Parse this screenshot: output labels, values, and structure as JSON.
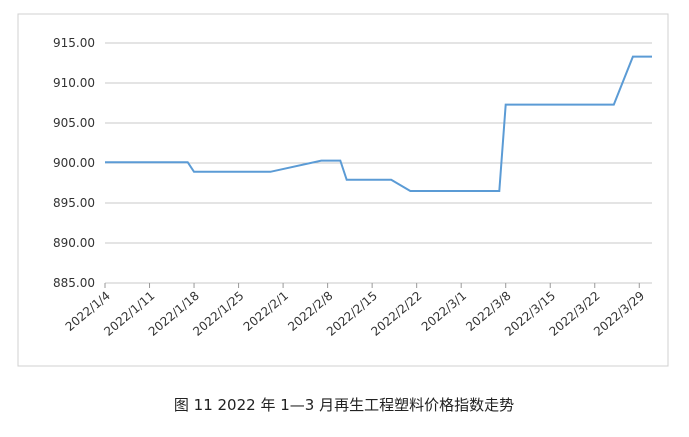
{
  "chart_data": {
    "type": "line",
    "caption": "图 11  2022 年 1—3 月再生工程塑料价格指数走势",
    "x": [
      "2022/1/4",
      "2022/1/17",
      "2022/1/18",
      "2022/1/30",
      "2022/2/7",
      "2022/2/10",
      "2022/2/11",
      "2022/2/18",
      "2022/2/21",
      "2022/3/7",
      "2022/3/8",
      "2022/3/25",
      "2022/3/28",
      "2022/3/31"
    ],
    "values": [
      900.1,
      900.1,
      898.9,
      898.9,
      900.3,
      900.3,
      897.9,
      897.9,
      896.5,
      896.5,
      907.3,
      907.3,
      913.3,
      913.3
    ],
    "color": "#5b9bd5",
    "xlim": [
      "2022/1/4",
      "2022/3/31"
    ],
    "xticks": [
      "2022/1/4",
      "2022/1/11",
      "2022/1/18",
      "2022/1/25",
      "2022/2/1",
      "2022/2/8",
      "2022/2/15",
      "2022/2/22",
      "2022/3/1",
      "2022/3/8",
      "2022/3/15",
      "2022/3/22",
      "2022/3/29"
    ],
    "ylim": [
      885,
      915
    ],
    "yticks": [
      {
        "value": 885,
        "label": "885.00"
      },
      {
        "value": 890,
        "label": "890.00"
      },
      {
        "value": 895,
        "label": "895.00"
      },
      {
        "value": 900,
        "label": "900.00"
      },
      {
        "value": 905,
        "label": "905.00"
      },
      {
        "value": 910,
        "label": "910.00"
      },
      {
        "value": 915,
        "label": "915.00"
      }
    ],
    "grid": true
  }
}
